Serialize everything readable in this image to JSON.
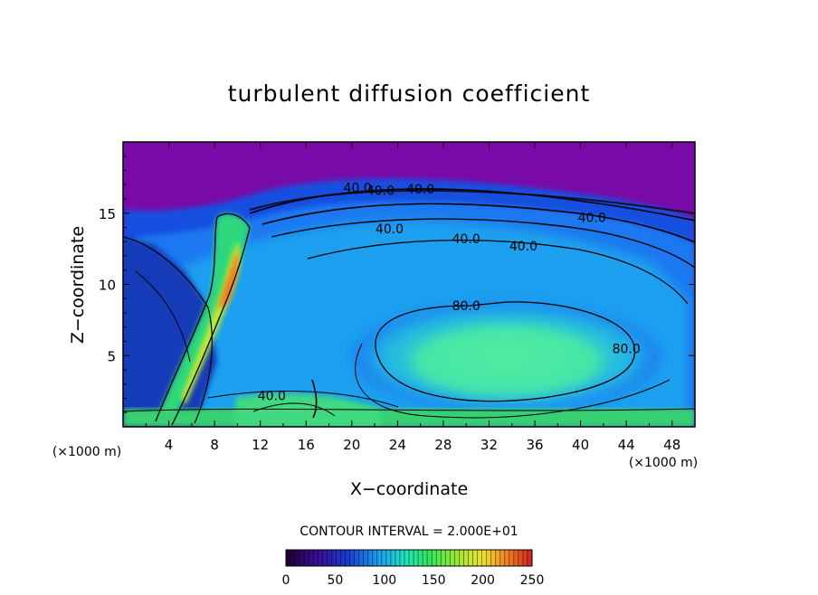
{
  "chart_data": {
    "type": "heatmap",
    "title": "turbulent diffusion coefficient",
    "xlabel": "X−coordinate",
    "ylabel": "Z−coordinate",
    "x_unit_left": "(×1000 m)",
    "x_unit_right": "(×1000 m)",
    "xlim": [
      0,
      50
    ],
    "ylim": [
      0,
      20
    ],
    "xticks": [
      4,
      8,
      12,
      16,
      20,
      24,
      28,
      32,
      36,
      40,
      44,
      48
    ],
    "xtick_labels": [
      "4",
      "8",
      "12",
      "16",
      "20",
      "24",
      "28",
      "32",
      "36",
      "40",
      "44",
      "48"
    ],
    "yticks": [
      5,
      10,
      15
    ],
    "ytick_labels": [
      "5",
      "10",
      "15"
    ],
    "contour_labels": [
      {
        "text": "40.0",
        "x": 20.5,
        "z": 16.8
      },
      {
        "text": "40.0",
        "x": 22.5,
        "z": 16.6
      },
      {
        "text": "40.0",
        "x": 26.0,
        "z": 16.7
      },
      {
        "text": "40.0",
        "x": 41.0,
        "z": 14.7
      },
      {
        "text": "40.0",
        "x": 23.3,
        "z": 13.9
      },
      {
        "text": "40.0",
        "x": 30.0,
        "z": 13.2
      },
      {
        "text": "40.0",
        "x": 35.0,
        "z": 12.7
      },
      {
        "text": "80.0",
        "x": 30.0,
        "z": 8.5
      },
      {
        "text": "80.0",
        "x": 44.0,
        "z": 5.5
      },
      {
        "text": "40.0",
        "x": 13.0,
        "z": 2.2
      }
    ],
    "contour_interval_label": "CONTOUR INTERVAL = 2.000E+01",
    "colorbar": {
      "min": 0,
      "max": 250,
      "tick_values": [
        0,
        50,
        100,
        150,
        200,
        250
      ],
      "tick_labels": [
        "0",
        "50",
        "100",
        "150",
        "200",
        "250"
      ]
    },
    "colors": {
      "background_field": "#7a0aa8",
      "low": "#1f0a7a",
      "mid_blue": "#1a6af0",
      "cyan": "#22c8e8",
      "green": "#3ee86a",
      "yellow": "#e8e830",
      "high": "#d82020"
    }
  }
}
